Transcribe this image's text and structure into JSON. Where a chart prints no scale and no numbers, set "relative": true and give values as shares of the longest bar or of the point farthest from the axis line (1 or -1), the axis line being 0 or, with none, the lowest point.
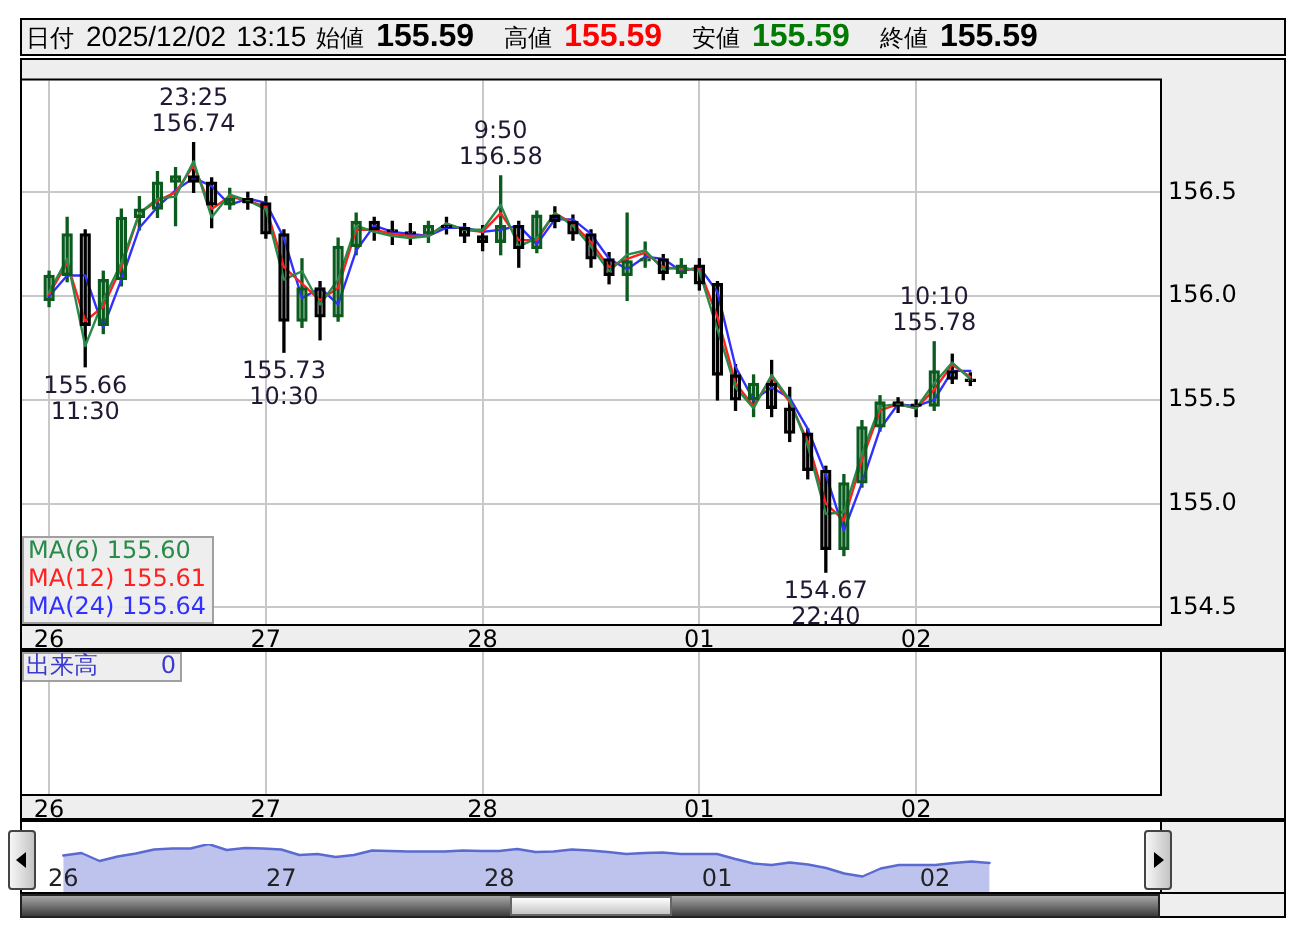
{
  "chart_data": [
    {
      "type": "candlestick",
      "title": "日付 2025/12/02 13:15 始値 155.59 高値 155.59 安値 155.59 終値 155.59",
      "categories": [
        "26",
        null,
        null,
        null,
        null,
        null,
        null,
        null,
        null,
        null,
        null,
        null,
        "27",
        null,
        null,
        null,
        null,
        null,
        null,
        null,
        null,
        null,
        null,
        null,
        "28",
        null,
        null,
        null,
        null,
        null,
        null,
        null,
        null,
        null,
        null,
        null,
        "01",
        null,
        null,
        null,
        null,
        null,
        null,
        null,
        null,
        null,
        null,
        null,
        "02",
        null,
        null,
        null,
        null,
        null,
        null,
        null,
        null,
        null,
        null,
        null,
        null,
        null
      ],
      "ohlc": [
        [
          155.98,
          156.12,
          155.95,
          156.1
        ],
        [
          156.1,
          156.38,
          156.07,
          156.3
        ],
        [
          156.3,
          156.32,
          155.66,
          155.86
        ],
        [
          155.86,
          156.12,
          155.82,
          156.08
        ],
        [
          156.08,
          156.42,
          156.05,
          156.38
        ],
        [
          156.38,
          156.48,
          156.32,
          156.42
        ],
        [
          156.42,
          156.6,
          156.38,
          156.55
        ],
        [
          156.55,
          156.62,
          156.34,
          156.58
        ],
        [
          156.58,
          156.74,
          156.5,
          156.55
        ],
        [
          156.55,
          156.57,
          156.33,
          156.44
        ],
        [
          156.44,
          156.52,
          156.42,
          156.47
        ],
        [
          156.47,
          156.5,
          156.42,
          156.45
        ],
        [
          156.45,
          156.48,
          156.28,
          156.3
        ],
        [
          156.3,
          156.32,
          155.73,
          155.88
        ],
        [
          155.88,
          156.18,
          155.85,
          156.04
        ],
        [
          156.04,
          156.07,
          155.79,
          155.9
        ],
        [
          155.9,
          156.28,
          155.88,
          156.24
        ],
        [
          156.24,
          156.4,
          156.2,
          156.36
        ],
        [
          156.36,
          156.38,
          156.27,
          156.32
        ],
        [
          156.32,
          156.36,
          156.25,
          156.31
        ],
        [
          156.31,
          156.35,
          156.25,
          156.3
        ],
        [
          156.3,
          156.36,
          156.26,
          156.34
        ],
        [
          156.34,
          156.38,
          156.3,
          156.33
        ],
        [
          156.33,
          156.35,
          156.26,
          156.29
        ],
        [
          156.29,
          156.34,
          156.22,
          156.26
        ],
        [
          156.26,
          156.58,
          156.2,
          156.34
        ],
        [
          156.34,
          156.36,
          156.14,
          156.23
        ],
        [
          156.23,
          156.41,
          156.21,
          156.39
        ],
        [
          156.39,
          156.43,
          156.33,
          156.36
        ],
        [
          156.36,
          156.39,
          156.27,
          156.3
        ],
        [
          156.3,
          156.32,
          156.14,
          156.18
        ],
        [
          156.18,
          156.21,
          156.06,
          156.1
        ],
        [
          156.1,
          156.4,
          155.98,
          156.17
        ],
        [
          156.17,
          156.26,
          156.14,
          156.18
        ],
        [
          156.18,
          156.2,
          156.08,
          156.11
        ],
        [
          156.11,
          156.18,
          156.09,
          156.15
        ],
        [
          156.15,
          156.18,
          156.03,
          156.06
        ],
        [
          156.06,
          156.07,
          155.5,
          155.62
        ],
        [
          155.62,
          155.67,
          155.45,
          155.5
        ],
        [
          155.5,
          155.62,
          155.42,
          155.58
        ],
        [
          155.58,
          155.69,
          155.42,
          155.46
        ],
        [
          155.46,
          155.56,
          155.3,
          155.34
        ],
        [
          155.34,
          155.36,
          155.12,
          155.16
        ],
        [
          155.16,
          155.18,
          154.67,
          154.78
        ],
        [
          154.78,
          155.14,
          154.75,
          155.1
        ],
        [
          155.1,
          155.4,
          155.08,
          155.37
        ],
        [
          155.37,
          155.52,
          155.35,
          155.49
        ],
        [
          155.49,
          155.51,
          155.44,
          155.47
        ],
        [
          155.47,
          155.5,
          155.42,
          155.47
        ],
        [
          155.47,
          155.78,
          155.45,
          155.64
        ],
        [
          155.64,
          155.72,
          155.58,
          155.6
        ],
        [
          155.6,
          155.63,
          155.57,
          155.59
        ],
        null,
        null,
        null,
        null,
        null,
        null,
        null,
        null,
        null,
        null
      ],
      "colors": [
        "#0b5a1e",
        "#0b5a1e",
        "#000000",
        "#0b5a1e",
        "#0b5a1e",
        "#0b5a1e",
        "#0b5a1e",
        "#0b5a1e",
        "#000000",
        "#000000",
        "#0b5a1e",
        "#000000",
        "#000000",
        "#000000",
        "#0b5a1e",
        "#000000",
        "#0b5a1e",
        "#0b5a1e",
        "#000000",
        "#000000",
        "#000000",
        "#0b5a1e",
        "#000000",
        "#000000",
        "#000000",
        "#0b5a1e",
        "#000000",
        "#0b5a1e",
        "#000000",
        "#000000",
        "#000000",
        "#000000",
        "#0b5a1e",
        "#0b5a1e",
        "#000000",
        "#0b5a1e",
        "#000000",
        "#000000",
        "#000000",
        "#0b5a1e",
        "#000000",
        "#000000",
        "#000000",
        "#000000",
        "#0b5a1e",
        "#0b5a1e",
        "#0b5a1e",
        "#000000",
        "#000000",
        "#0b5a1e",
        "#000000",
        "#000000",
        null,
        null,
        null,
        null,
        null,
        null,
        null,
        null,
        null,
        null
      ],
      "series": [
        {
          "name": "MA(6) 155.60",
          "type": "line",
          "color": "#2a8a4a",
          "values": [
            156.02,
            156.18,
            155.76,
            155.98,
            156.16,
            156.4,
            156.47,
            156.48,
            156.65,
            156.38,
            156.49,
            156.46,
            156.42,
            156.08,
            156.12,
            155.96,
            156.08,
            156.34,
            156.31,
            156.29,
            156.28,
            156.29,
            156.35,
            156.32,
            156.32,
            156.44,
            156.24,
            156.28,
            156.4,
            156.34,
            156.24,
            156.12,
            156.2,
            156.22,
            156.13,
            156.14,
            156.12,
            155.84,
            155.56,
            155.46,
            155.62,
            155.5,
            155.28,
            154.95,
            154.96,
            155.24,
            155.47,
            155.48,
            155.46,
            155.58,
            155.68,
            155.6,
            null,
            null,
            null,
            null,
            null,
            null,
            null,
            null,
            null,
            null
          ]
        },
        {
          "name": "MA(12) 155.61",
          "type": "line",
          "color": "#ff2020",
          "values": [
            156.01,
            156.16,
            155.88,
            155.95,
            156.14,
            156.4,
            156.46,
            156.5,
            156.63,
            156.42,
            156.48,
            156.46,
            156.43,
            156.14,
            156.06,
            155.98,
            156.04,
            156.32,
            156.32,
            156.3,
            156.29,
            156.29,
            156.35,
            156.32,
            156.31,
            156.4,
            156.27,
            156.27,
            156.4,
            156.35,
            156.26,
            156.14,
            156.18,
            156.21,
            156.14,
            156.13,
            156.13,
            155.9,
            155.58,
            155.47,
            155.61,
            155.49,
            155.3,
            155.0,
            154.92,
            155.21,
            155.45,
            155.48,
            155.46,
            155.55,
            155.67,
            155.61,
            null,
            null,
            null,
            null,
            null,
            null,
            null,
            null,
            null,
            null
          ]
        },
        {
          "name": "MA(24) 155.64",
          "type": "line",
          "color": "#3030ff",
          "values": [
            156.0,
            156.1,
            156.1,
            155.85,
            156.08,
            156.33,
            156.43,
            156.51,
            156.57,
            156.53,
            156.44,
            156.47,
            156.45,
            156.28,
            155.99,
            156.04,
            155.96,
            156.22,
            156.34,
            156.31,
            156.3,
            156.29,
            156.33,
            156.33,
            156.31,
            156.32,
            156.34,
            156.25,
            156.37,
            156.37,
            156.3,
            156.18,
            156.13,
            156.19,
            156.18,
            156.12,
            156.14,
            156.02,
            155.66,
            155.5,
            155.56,
            155.51,
            155.36,
            155.14,
            154.87,
            155.1,
            155.36,
            155.48,
            155.47,
            155.5,
            155.64,
            155.64,
            null,
            null,
            null,
            null,
            null,
            null,
            null,
            null,
            null,
            null
          ]
        }
      ],
      "ylim": [
        154.42,
        157.04
      ],
      "yticks": [
        154.5,
        {
          "value": 155,
          "label": "155.0"
        },
        155.5,
        {
          "value": 156,
          "label": "156.0"
        },
        156.5
      ],
      "annotations": [
        {
          "text": "23:25\n156.74",
          "y": 156.74
        },
        {
          "text": "155.66\n11:30",
          "y": 155.66
        },
        {
          "text": "155.73\n10:30",
          "y": 155.73
        },
        {
          "text": "9:50\n156.58",
          "y": 156.58
        },
        {
          "text": "154.67\n22:40",
          "y": 154.67
        },
        {
          "text": "10:10\n155.78",
          "y": 155.78
        }
      ],
      "grid": true,
      "legend": "bottom left"
    },
    {
      "type": "other",
      "categories": [
        "26",
        null,
        null,
        null,
        null,
        null,
        null,
        null,
        null,
        null,
        null,
        null,
        "27",
        null,
        null,
        null,
        null,
        null,
        null,
        null,
        null,
        null,
        null,
        null,
        "28",
        null,
        null,
        null,
        null,
        null,
        null,
        null,
        null,
        null,
        null,
        null,
        "01",
        null,
        null,
        null,
        null,
        null,
        null,
        null,
        null,
        null,
        null,
        null,
        "02",
        null,
        null,
        null,
        null,
        null,
        null,
        null,
        null,
        null,
        null,
        null,
        null,
        null
      ],
      "annotations": [
        "出来高",
        "0"
      ]
    },
    {
      "type": "area",
      "categories": [
        "26",
        null,
        null,
        null,
        null,
        null,
        null,
        null,
        null,
        null,
        null,
        null,
        "27",
        null,
        null,
        null,
        null,
        null,
        null,
        null,
        null,
        null,
        null,
        null,
        "28",
        null,
        null,
        null,
        null,
        null,
        null,
        null,
        null,
        null,
        null,
        null,
        "01",
        null,
        null,
        null,
        null,
        null,
        null,
        null,
        null,
        null,
        null,
        null,
        "02",
        null,
        null,
        null,
        null,
        null,
        null,
        null,
        null,
        null,
        null,
        null
      ],
      "values": [
        0.77,
        0.82,
        0.66,
        0.75,
        0.81,
        0.89,
        0.91,
        0.91,
        1,
        0.88,
        0.92,
        0.91,
        0.89,
        0.78,
        0.8,
        0.74,
        0.78,
        0.87,
        0.86,
        0.85,
        0.85,
        0.85,
        0.87,
        0.86,
        0.86,
        0.9,
        0.84,
        0.85,
        0.89,
        0.87,
        0.84,
        0.8,
        0.82,
        0.83,
        0.8,
        0.8,
        0.8,
        0.7,
        0.61,
        0.58,
        0.63,
        0.59,
        0.52,
        0.41,
        0.35,
        0.51,
        0.58,
        0.58,
        0.58,
        0.62,
        0.65,
        0.62,
        null,
        null,
        null,
        null,
        null,
        null,
        null,
        null
      ],
      "color": "#5a6ad0",
      "relative": true,
      "grid": "x"
    }
  ]
}
